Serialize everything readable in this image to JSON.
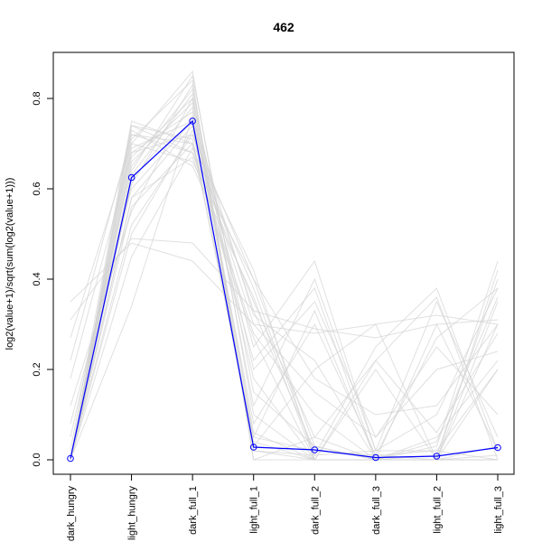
{
  "chart_data": {
    "type": "line",
    "title": "462",
    "xlabel": "",
    "ylabel": "log2(value+1)/sqrt(sum(log2(value+1)))",
    "categories": [
      "dark_hungry",
      "light_hungry",
      "dark_full_1",
      "light_full_1",
      "dark_full_2",
      "dark_full_3",
      "light_full_2",
      "light_full_3"
    ],
    "yticks": [
      0.0,
      0.2,
      0.4,
      0.6,
      0.8
    ],
    "ytick_labels": [
      "0.0",
      "0.2",
      "0.4",
      "0.6",
      "0.8"
    ],
    "ylim": [
      -0.03,
      0.86
    ],
    "grid": false,
    "highlight_series": {
      "values": [
        0.003,
        0.625,
        0.75,
        0.028,
        0.022,
        0.005,
        0.008,
        0.027
      ],
      "color": "#0000ff",
      "marker": "open-circle"
    },
    "background_series_color": "#d3d3d3",
    "background_series": [
      [
        0.35,
        0.48,
        0.44,
        0.3,
        0.28,
        0.3,
        0.32,
        0.3
      ],
      [
        0.31,
        0.49,
        0.48,
        0.33,
        0.29,
        0.27,
        0.3,
        0.31
      ],
      [
        0.27,
        0.7,
        0.66,
        0.4,
        0.18,
        0.1,
        0.12,
        0.3
      ],
      [
        0.22,
        0.72,
        0.68,
        0.35,
        0.05,
        0.22,
        0.06,
        0.28
      ],
      [
        0.18,
        0.68,
        0.72,
        0.3,
        0.15,
        0.05,
        0.2,
        0.24
      ],
      [
        0.12,
        0.55,
        0.8,
        0.2,
        0.35,
        0.05,
        0.25,
        0.1
      ],
      [
        0.08,
        0.6,
        0.75,
        0.25,
        0.44,
        0.02,
        0.1,
        0.38
      ],
      [
        0.05,
        0.65,
        0.82,
        0.12,
        0.4,
        0.02,
        0.35,
        0.05
      ],
      [
        0.02,
        0.75,
        0.7,
        0.05,
        0.33,
        0.0,
        0.03,
        0.44
      ],
      [
        0.0,
        0.62,
        0.78,
        0.03,
        0.2,
        0.3,
        0.0,
        0.35
      ],
      [
        0.0,
        0.58,
        0.74,
        0.02,
        0.01,
        0.25,
        0.38,
        0.02
      ],
      [
        0.0,
        0.66,
        0.79,
        0.05,
        0.02,
        0.01,
        0.27,
        0.38
      ],
      [
        0.0,
        0.7,
        0.86,
        0.1,
        0.0,
        0.0,
        0.01,
        0.4
      ],
      [
        0.0,
        0.52,
        0.72,
        0.4,
        0.03,
        0.0,
        0.0,
        0.2
      ],
      [
        0.0,
        0.45,
        0.69,
        0.38,
        0.01,
        0.02,
        0.02,
        0.0
      ],
      [
        0.0,
        0.73,
        0.65,
        0.36,
        0.0,
        0.0,
        0.0,
        0.01
      ],
      [
        0.0,
        0.64,
        0.85,
        0.15,
        0.03,
        0.0,
        0.3,
        0.02
      ],
      [
        0.0,
        0.68,
        0.77,
        0.08,
        0.3,
        0.01,
        0.0,
        0.0
      ],
      [
        0.0,
        0.61,
        0.83,
        0.0,
        0.05,
        0.0,
        0.0,
        0.0
      ],
      [
        0.0,
        0.74,
        0.71,
        0.04,
        0.0,
        0.0,
        0.04,
        0.36
      ],
      [
        0.0,
        0.34,
        0.76,
        0.32,
        0.22,
        0.0,
        0.0,
        0.0
      ],
      [
        0.0,
        0.58,
        0.67,
        0.27,
        0.0,
        0.2,
        0.0,
        0.0
      ],
      [
        0.0,
        0.71,
        0.84,
        0.0,
        0.0,
        0.0,
        0.0,
        0.3
      ],
      [
        0.0,
        0.5,
        0.73,
        0.33,
        0.02,
        0.01,
        0.02,
        0.2
      ],
      [
        0.0,
        0.67,
        0.8,
        0.06,
        0.0,
        0.0,
        0.0,
        0.03
      ],
      [
        0.0,
        0.72,
        0.7,
        0.22,
        0.38,
        0.0,
        0.0,
        0.0
      ],
      [
        0.0,
        0.63,
        0.81,
        0.02,
        0.0,
        0.22,
        0.36,
        0.0
      ],
      [
        0.0,
        0.69,
        0.75,
        0.18,
        0.0,
        0.0,
        0.0,
        0.42
      ],
      [
        0.0,
        0.56,
        0.7,
        0.42,
        0.0,
        0.0,
        0.0,
        0.0
      ],
      [
        0.0,
        0.74,
        0.68,
        0.28,
        0.1,
        0.0,
        0.05,
        0.22
      ]
    ]
  }
}
